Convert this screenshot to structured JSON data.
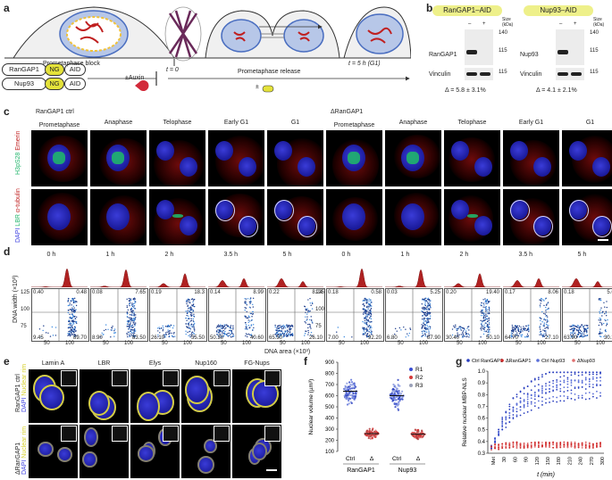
{
  "panel_a": {
    "label": "a",
    "prometaphase_block": "Prometaphase block",
    "t0": "t = 0",
    "t5h": "t = 5 h (G1)",
    "prometaphase_release": "Prometaphase release",
    "constructs": [
      {
        "name": "RanGAP1",
        "tag": "NG",
        "degron": "AID"
      },
      {
        "name": "Nup93",
        "tag": "NG",
        "degron": "AID"
      }
    ],
    "auxin": "±Auxin",
    "pm": "±"
  },
  "panel_b": {
    "label": "b",
    "blots": [
      {
        "title": "RanGAP1–AID",
        "minus": "–",
        "plus": "+",
        "size_header": "Size (kDa)",
        "row1": "RanGAP1",
        "row2": "Vinculin",
        "sizes1": [
          "140",
          "115"
        ],
        "sizes2": [
          "115"
        ],
        "delta": "Δ = 5.8 ± 3.1%"
      },
      {
        "title": "Nup93–AID",
        "minus": "–",
        "plus": "+",
        "size_header": "Size (kDa)",
        "row1": "Nup93",
        "row2": "Vinculin",
        "sizes1": [
          "140",
          "115"
        ],
        "sizes2": [
          "115"
        ],
        "delta": "Δ = 4.1 ± 2.1%"
      }
    ]
  },
  "panel_c": {
    "label": "c",
    "group_ctrl": "RanGAP1 ctrl",
    "group_del": "ΔRanGAP1",
    "stages": [
      "Prometaphase",
      "Anaphase",
      "Telophase",
      "Early G1",
      "G1"
    ],
    "row1_label": {
      "a": "H3pS28",
      "b": "Emerin"
    },
    "row2_label": {
      "a": "DAPI",
      "b": "LBR",
      "c": "α-tubulin"
    }
  },
  "panel_d": {
    "label": "d",
    "times": [
      "0 h",
      "1 h",
      "2 h",
      "3.5 h",
      "5 h"
    ],
    "ylabel": "DNA width (×10³)",
    "xlabel": "DNA area (×10³)",
    "yticks": [
      "125",
      "100",
      "75"
    ],
    "xticks": [
      "50",
      "100"
    ],
    "ctrl_quadrants": [
      {
        "tl": "0.40",
        "tr": "0.48",
        "bl": "9.45",
        "br": "89.70"
      },
      {
        "tl": "0.08",
        "tr": "7.65",
        "bl": "8.90",
        "br": "83.50"
      },
      {
        "tl": "0.19",
        "tr": "18.3",
        "bl": "26.10",
        "br": "55.50"
      },
      {
        "tl": "0.14",
        "tr": "8.99",
        "bl": "50.30",
        "br": "40.60"
      },
      {
        "tl": "0.22",
        "tr": "8.24",
        "bl": "65.50",
        "br": "26.10"
      }
    ],
    "del_quadrants": [
      {
        "tl": "0.18",
        "tr": "0.58",
        "bl": "7.00",
        "br": "92.20"
      },
      {
        "tl": "0.03",
        "tr": "5.25",
        "bl": "6.80",
        "br": "87.90"
      },
      {
        "tl": "0.20",
        "tr": "19.40",
        "bl": "30.40",
        "br": "50.10"
      },
      {
        "tl": "0.17",
        "tr": "8.06",
        "bl": "64.70",
        "br": "27.10"
      },
      {
        "tl": "0.18",
        "tr": "5.64",
        "bl": "63.90",
        "br": "30.30"
      }
    ]
  },
  "panel_e": {
    "label": "e",
    "columns": [
      "Lamin A",
      "LBR",
      "Elys",
      "Nup160",
      "FG-Nups"
    ],
    "row1": {
      "name": "RanGAP1 ctrl",
      "a": "DAPI",
      "b": "Nuclear rim"
    },
    "row2": {
      "name": "ΔRanGAP1",
      "a": "DAPI",
      "b": "Nuclear rim"
    }
  },
  "panel_f": {
    "label": "f",
    "ylabel": "Nuclear volume (µm³)",
    "yticks": [
      "900",
      "800",
      "700",
      "600",
      "500",
      "400",
      "300",
      "200",
      "100"
    ],
    "legend": [
      "R1",
      "R2",
      "R3"
    ],
    "legend_colors": [
      "#3a4fd4",
      "#d43a3a",
      "#9aa0b8"
    ],
    "groups": [
      {
        "name": "RanGAP1",
        "ctrl": "Ctrl",
        "delta": "Δ"
      },
      {
        "name": "Nup93",
        "ctrl": "Ctrl",
        "delta": "Δ"
      }
    ],
    "chart_data": {
      "type": "scatter",
      "categories": [
        "RanGAP1 Ctrl",
        "RanGAP1 Δ",
        "Nup93 Ctrl",
        "Nup93 Δ"
      ],
      "ylim": [
        100,
        900
      ],
      "median": [
        640,
        260,
        600,
        255
      ]
    }
  },
  "panel_g": {
    "label": "g",
    "legend": [
      "Ctrl RanGAP1",
      "ΔRanGAP1",
      "Ctrl Nup93",
      "ΔNup93"
    ],
    "legend_colors": [
      "#2a3fbf",
      "#d02a2a",
      "#5a6fd8",
      "#e07070"
    ],
    "ylabel": "Relative nuclear MBP-NLS",
    "xlabel": "t (min)",
    "yticks": [
      "1.0",
      "0.9",
      "0.8",
      "0.7",
      "0.6",
      "0.5",
      "0.4",
      "0.3"
    ],
    "xticks": [
      "Met",
      "30",
      "60",
      "90",
      "120",
      "150",
      "180",
      "210",
      "240",
      "270",
      "300"
    ],
    "chart_data": {
      "type": "scatter",
      "ylim": [
        0.3,
        1.0
      ],
      "ctrl_mean": [
        0.35,
        0.55,
        0.68,
        0.76,
        0.82,
        0.86,
        0.89,
        0.91,
        0.92,
        0.93,
        0.94
      ],
      "del_mean": [
        0.35,
        0.36,
        0.37,
        0.37,
        0.37,
        0.37,
        0.37,
        0.37,
        0.37,
        0.37,
        0.37
      ]
    }
  },
  "scale_bar": ""
}
